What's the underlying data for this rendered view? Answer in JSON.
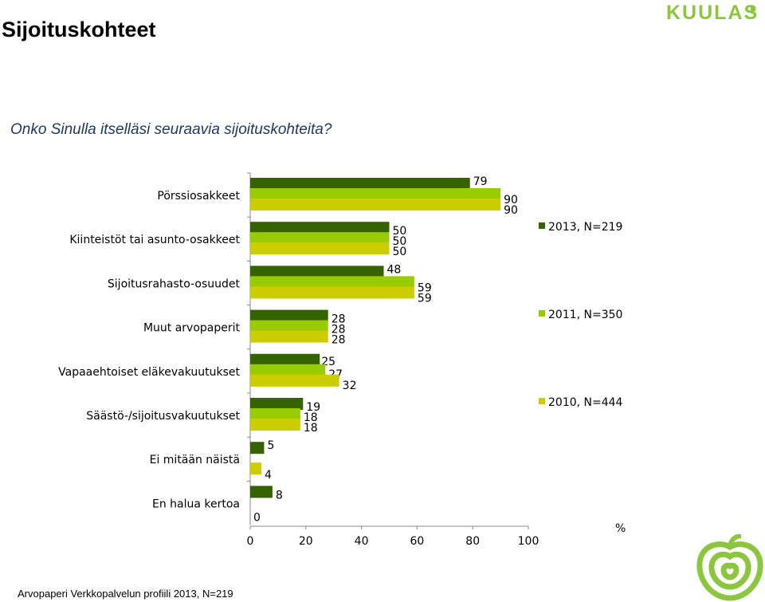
{
  "page": {
    "title": "Sijoituskohteet",
    "logo_text": "KUULAS",
    "question": "Onko Sinulla itselläsi seuraavia sijoituskohteita?",
    "footer": "Arvopaperi Verkkopalvelun profiili 2013, N=219"
  },
  "chart_data": {
    "type": "bar",
    "orientation": "horizontal",
    "categories": [
      "Pörssiosakkeet",
      "Kiinteistöt tai asunto-osakkeet",
      "Sijoitusrahasto-osuudet",
      "Muut arvopaperit",
      "Vapaaehtoiset eläkevakuutukset",
      "Säästö-/sijoitusvakuutukset",
      "Ei mitään näistä",
      "En halua kertoa"
    ],
    "series": [
      {
        "name": "2013, N=219",
        "color": "#376200",
        "values": [
          79,
          50,
          48,
          28,
          25,
          19,
          5,
          8
        ]
      },
      {
        "name": "2011, N=350",
        "color": "#99cc00",
        "values": [
          90,
          50,
          59,
          28,
          27,
          18,
          null,
          null
        ]
      },
      {
        "name": "2010, N=444",
        "color": "#cccc00",
        "values": [
          90,
          50,
          59,
          28,
          32,
          18,
          4,
          0
        ]
      }
    ],
    "xlim": [
      0,
      100
    ],
    "xticks": [
      0,
      20,
      40,
      60,
      80,
      100
    ],
    "unit_label": "%",
    "legend_position": "right",
    "grid": false
  }
}
